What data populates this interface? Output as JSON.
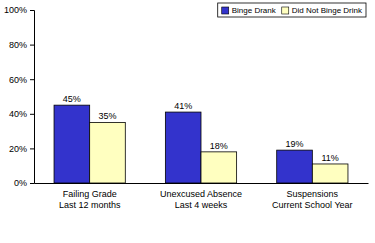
{
  "chart_data": {
    "type": "bar",
    "categories": [
      "Failing Grade\nLast 12 months",
      "Unexcused Absence\nLast 4 weeks",
      "Suspensions\nCurrent School Year"
    ],
    "series": [
      {
        "name": "Binge Drank",
        "color": "#3333cc",
        "values": [
          45,
          41,
          19
        ],
        "value_labels": [
          "45%",
          "41%",
          "19%"
        ]
      },
      {
        "name": "Did Not Binge Drink",
        "color": "#ffffc0",
        "values": [
          35,
          18,
          11
        ],
        "value_labels": [
          "35%",
          "18%",
          "11%"
        ]
      }
    ],
    "ylim": [
      0,
      100
    ],
    "yticks": [
      {
        "value": 0,
        "label": "0%"
      },
      {
        "value": 20,
        "label": "20%"
      },
      {
        "value": 40,
        "label": "40%"
      },
      {
        "value": 60,
        "label": "60%"
      },
      {
        "value": 80,
        "label": "80%"
      },
      {
        "value": 100,
        "label": "100%"
      }
    ],
    "grid": false,
    "legend": "top-right",
    "data_labels": true
  }
}
